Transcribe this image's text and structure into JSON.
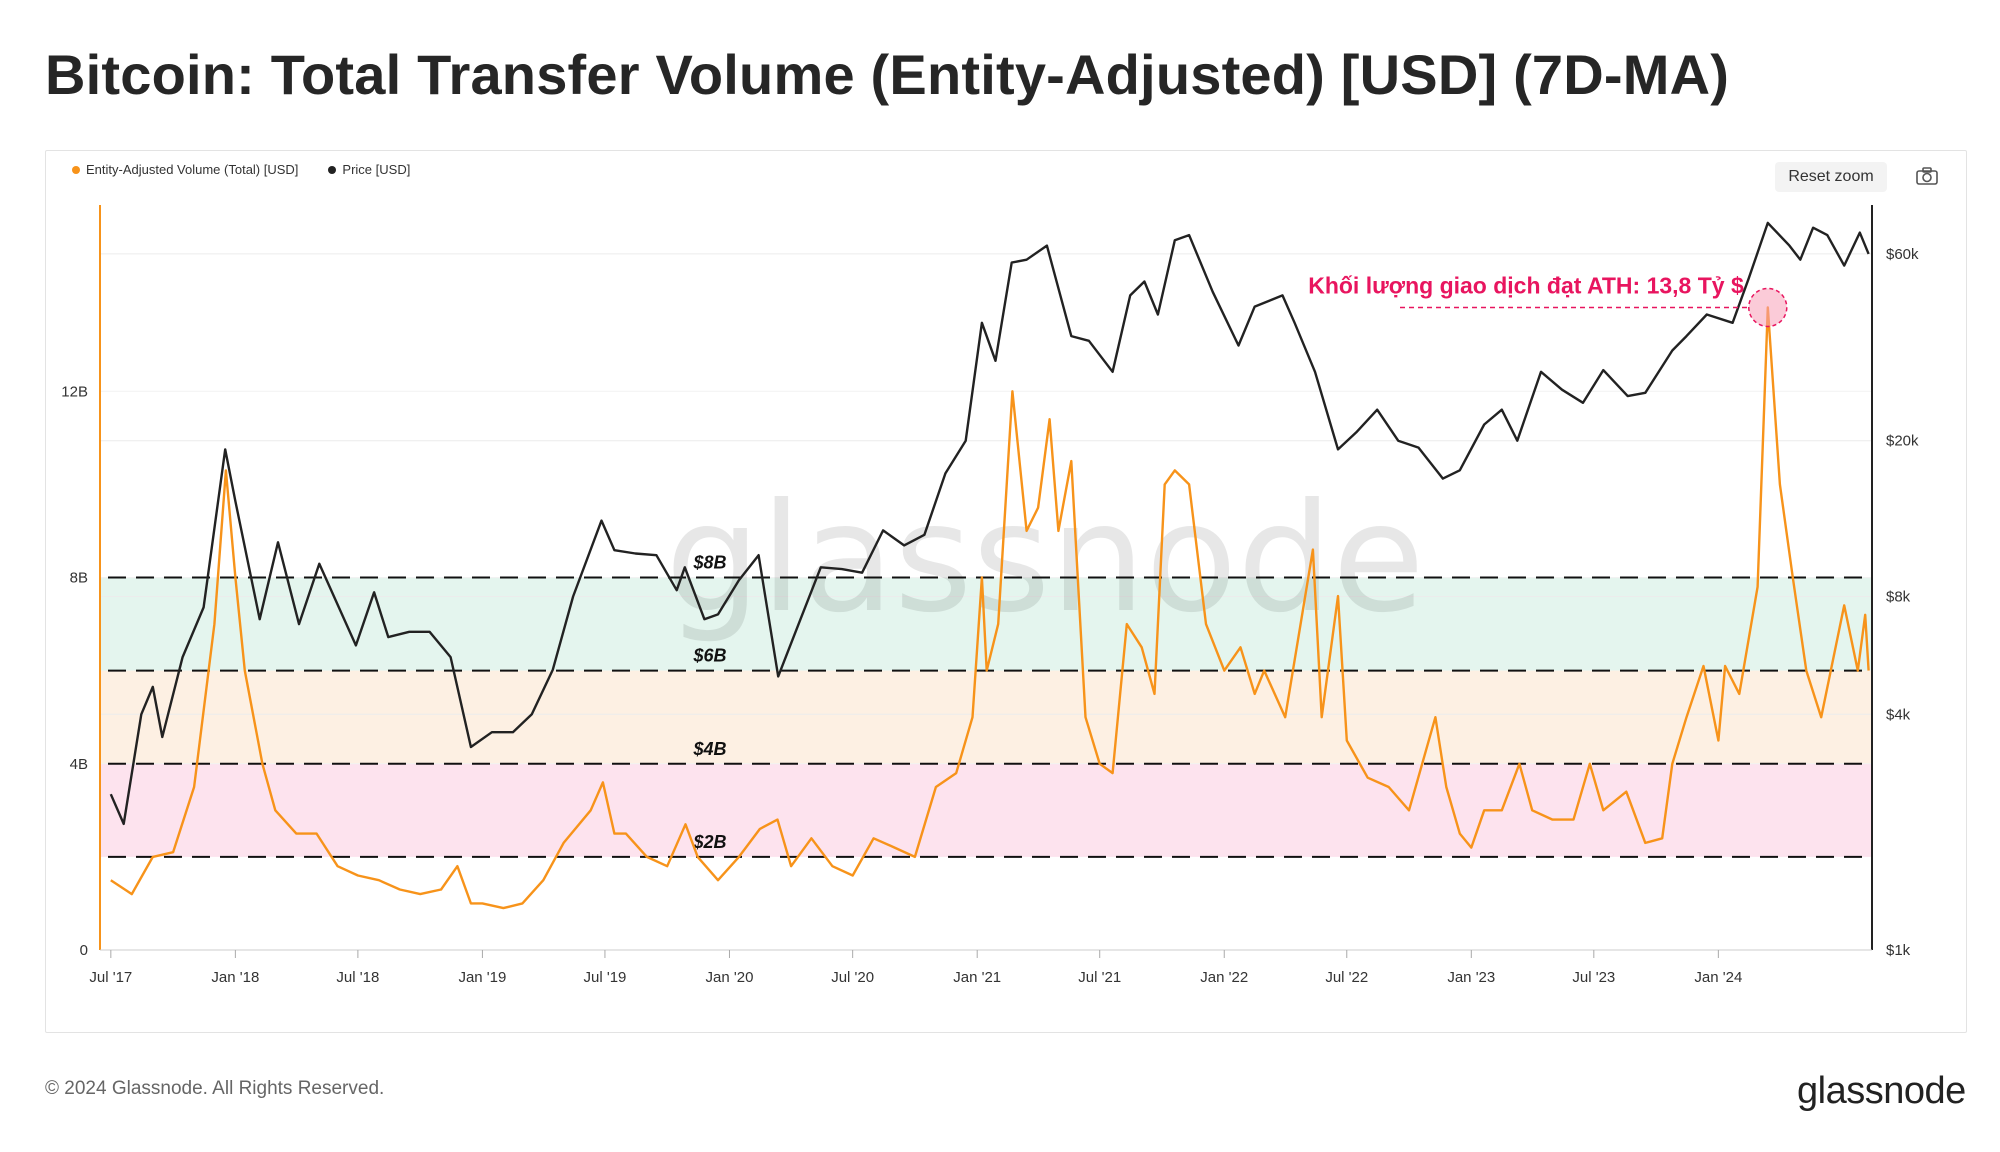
{
  "title": "Bitcoin: Total Transfer Volume (Entity-Adjusted) [USD] (7D-MA)",
  "legend": [
    {
      "label": "Entity-Adjusted Volume (Total) [USD]",
      "color": "#f7931a"
    },
    {
      "label": "Price [USD]",
      "color": "#222222"
    }
  ],
  "controls": {
    "reset_zoom": "Reset zoom",
    "camera_icon": "camera-icon"
  },
  "footer": {
    "copyright": "© 2024 Glassnode. All Rights Reserved.",
    "brand": "glassnode"
  },
  "watermark": "glassnode",
  "annotation": {
    "text": "Khối lượng giao dịch đạt ATH: 13,8 Tỷ $",
    "date": "2024-03-14",
    "value": 13.8
  },
  "colors": {
    "volume": "#f7931a",
    "price": "#222222",
    "annotation": "#e8155f",
    "band_green": "#e4f5ee",
    "band_orange": "#fdf0e3",
    "band_pink": "#fde3ee"
  },
  "chart_data": {
    "type": "line",
    "left_axis": {
      "ticks": [
        0,
        4,
        8,
        12
      ],
      "tick_labels": [
        "0",
        "4B",
        "8B",
        "12B"
      ],
      "range": [
        0,
        16
      ],
      "unit": "USD billions"
    },
    "right_axis": {
      "scale": "log",
      "ticks": [
        1000,
        4000,
        8000,
        20000,
        60000
      ],
      "tick_labels": [
        "$1k",
        "$4k",
        "$8k",
        "$20k",
        "$60k"
      ],
      "range": [
        1000,
        80000
      ]
    },
    "x_ticks": [
      "2017-07-01",
      "2018-01-01",
      "2018-07-01",
      "2019-01-01",
      "2019-07-01",
      "2020-01-01",
      "2020-07-01",
      "2021-01-01",
      "2021-07-01",
      "2022-01-01",
      "2022-07-01",
      "2023-01-01",
      "2023-07-01",
      "2024-01-01"
    ],
    "x_tick_labels": [
      "Jul '17",
      "Jan '18",
      "Jul '18",
      "Jan '19",
      "Jul '19",
      "Jan '20",
      "Jul '20",
      "Jan '21",
      "Jul '21",
      "Jan '22",
      "Jul '22",
      "Jan '23",
      "Jul '23",
      "Jan '24"
    ],
    "x_range": [
      "2017-06-15",
      "2024-08-15"
    ],
    "levels": [
      {
        "value": 8,
        "label": "$8B"
      },
      {
        "value": 6,
        "label": "$6B"
      },
      {
        "value": 4,
        "label": "$4B"
      },
      {
        "value": 2,
        "label": "$2B"
      }
    ],
    "bands": [
      {
        "from": 6,
        "to": 8,
        "color": "#e4f5ee"
      },
      {
        "from": 4,
        "to": 6,
        "color": "#fdf0e3"
      },
      {
        "from": 2,
        "to": 4,
        "color": "#fde3ee"
      }
    ],
    "series": [
      {
        "name": "Entity-Adjusted Volume (Total) [USD]",
        "axis": "left",
        "points": [
          [
            "2017-07-01",
            1.5
          ],
          [
            "2017-08-01",
            1.2
          ],
          [
            "2017-09-01",
            2.0
          ],
          [
            "2017-10-01",
            2.1
          ],
          [
            "2017-11-01",
            3.5
          ],
          [
            "2017-12-01",
            7.0
          ],
          [
            "2017-12-18",
            10.3
          ],
          [
            "2018-01-01",
            8.0
          ],
          [
            "2018-01-15",
            6.0
          ],
          [
            "2018-02-10",
            4.0
          ],
          [
            "2018-03-01",
            3.0
          ],
          [
            "2018-04-01",
            2.5
          ],
          [
            "2018-05-01",
            2.5
          ],
          [
            "2018-06-01",
            1.8
          ],
          [
            "2018-07-01",
            1.6
          ],
          [
            "2018-08-01",
            1.5
          ],
          [
            "2018-09-01",
            1.3
          ],
          [
            "2018-10-01",
            1.2
          ],
          [
            "2018-11-01",
            1.3
          ],
          [
            "2018-11-25",
            1.8
          ],
          [
            "2018-12-15",
            1.0
          ],
          [
            "2019-01-01",
            1.0
          ],
          [
            "2019-02-01",
            0.9
          ],
          [
            "2019-03-01",
            1.0
          ],
          [
            "2019-04-01",
            1.5
          ],
          [
            "2019-05-01",
            2.3
          ],
          [
            "2019-06-10",
            3.0
          ],
          [
            "2019-06-28",
            3.6
          ],
          [
            "2019-07-15",
            2.5
          ],
          [
            "2019-08-01",
            2.5
          ],
          [
            "2019-09-01",
            2.0
          ],
          [
            "2019-10-01",
            1.8
          ],
          [
            "2019-10-28",
            2.7
          ],
          [
            "2019-11-15",
            2.0
          ],
          [
            "2019-12-15",
            1.5
          ],
          [
            "2020-01-15",
            2.0
          ],
          [
            "2020-02-15",
            2.6
          ],
          [
            "2020-03-12",
            2.8
          ],
          [
            "2020-04-01",
            1.8
          ],
          [
            "2020-05-01",
            2.4
          ],
          [
            "2020-06-01",
            1.8
          ],
          [
            "2020-07-01",
            1.6
          ],
          [
            "2020-08-01",
            2.4
          ],
          [
            "2020-09-01",
            2.2
          ],
          [
            "2020-10-01",
            2.0
          ],
          [
            "2020-11-01",
            3.5
          ],
          [
            "2020-12-01",
            3.8
          ],
          [
            "2020-12-25",
            5.0
          ],
          [
            "2021-01-08",
            8.0
          ],
          [
            "2021-01-15",
            6.0
          ],
          [
            "2021-02-01",
            7.0
          ],
          [
            "2021-02-22",
            12.0
          ],
          [
            "2021-03-15",
            9.0
          ],
          [
            "2021-04-01",
            9.5
          ],
          [
            "2021-04-18",
            11.4
          ],
          [
            "2021-05-01",
            9.0
          ],
          [
            "2021-05-20",
            10.5
          ],
          [
            "2021-06-10",
            5.0
          ],
          [
            "2021-07-01",
            4.0
          ],
          [
            "2021-07-20",
            3.8
          ],
          [
            "2021-08-10",
            7.0
          ],
          [
            "2021-09-01",
            6.5
          ],
          [
            "2021-09-20",
            5.5
          ],
          [
            "2021-10-05",
            10.0
          ],
          [
            "2021-10-20",
            10.3
          ],
          [
            "2021-11-10",
            10.0
          ],
          [
            "2021-12-05",
            7.0
          ],
          [
            "2022-01-01",
            6.0
          ],
          [
            "2022-01-25",
            6.5
          ],
          [
            "2022-02-15",
            5.5
          ],
          [
            "2022-03-01",
            6.0
          ],
          [
            "2022-04-01",
            5.0
          ],
          [
            "2022-05-12",
            8.6
          ],
          [
            "2022-05-25",
            5.0
          ],
          [
            "2022-06-18",
            7.6
          ],
          [
            "2022-07-01",
            4.5
          ],
          [
            "2022-08-01",
            3.7
          ],
          [
            "2022-09-01",
            3.5
          ],
          [
            "2022-10-01",
            3.0
          ],
          [
            "2022-11-09",
            5.0
          ],
          [
            "2022-11-25",
            3.5
          ],
          [
            "2022-12-15",
            2.5
          ],
          [
            "2023-01-01",
            2.2
          ],
          [
            "2023-01-20",
            3.0
          ],
          [
            "2023-02-15",
            3.0
          ],
          [
            "2023-03-13",
            4.0
          ],
          [
            "2023-04-01",
            3.0
          ],
          [
            "2023-05-01",
            2.8
          ],
          [
            "2023-06-01",
            2.8
          ],
          [
            "2023-06-25",
            4.0
          ],
          [
            "2023-07-15",
            3.0
          ],
          [
            "2023-08-18",
            3.4
          ],
          [
            "2023-09-15",
            2.3
          ],
          [
            "2023-10-10",
            2.4
          ],
          [
            "2023-10-25",
            4.0
          ],
          [
            "2023-11-15",
            5.0
          ],
          [
            "2023-12-10",
            6.1
          ],
          [
            "2024-01-01",
            4.5
          ],
          [
            "2024-01-11",
            6.1
          ],
          [
            "2024-02-01",
            5.5
          ],
          [
            "2024-02-28",
            7.8
          ],
          [
            "2024-03-14",
            13.8
          ],
          [
            "2024-04-01",
            10.0
          ],
          [
            "2024-04-20",
            8.0
          ],
          [
            "2024-05-10",
            6.0
          ],
          [
            "2024-06-01",
            5.0
          ],
          [
            "2024-07-05",
            7.4
          ],
          [
            "2024-07-25",
            6.0
          ],
          [
            "2024-08-05",
            7.2
          ],
          [
            "2024-08-10",
            6.0
          ]
        ]
      },
      {
        "name": "Price [USD]",
        "axis": "right",
        "points": [
          [
            "2017-07-01",
            2500
          ],
          [
            "2017-07-20",
            2100
          ],
          [
            "2017-08-15",
            4000
          ],
          [
            "2017-09-01",
            4700
          ],
          [
            "2017-09-15",
            3500
          ],
          [
            "2017-10-15",
            5600
          ],
          [
            "2017-11-15",
            7500
          ],
          [
            "2017-12-17",
            19000
          ],
          [
            "2018-01-01",
            14000
          ],
          [
            "2018-02-06",
            7000
          ],
          [
            "2018-03-05",
            11000
          ],
          [
            "2018-04-05",
            6800
          ],
          [
            "2018-05-05",
            9700
          ],
          [
            "2018-06-28",
            6000
          ],
          [
            "2018-07-25",
            8200
          ],
          [
            "2018-08-15",
            6300
          ],
          [
            "2018-09-15",
            6500
          ],
          [
            "2018-10-15",
            6500
          ],
          [
            "2018-11-15",
            5600
          ],
          [
            "2018-12-15",
            3300
          ],
          [
            "2019-01-15",
            3600
          ],
          [
            "2019-02-15",
            3600
          ],
          [
            "2019-03-15",
            4000
          ],
          [
            "2019-04-15",
            5200
          ],
          [
            "2019-05-15",
            8000
          ],
          [
            "2019-06-26",
            12500
          ],
          [
            "2019-07-15",
            10500
          ],
          [
            "2019-08-15",
            10300
          ],
          [
            "2019-09-15",
            10200
          ],
          [
            "2019-10-15",
            8300
          ],
          [
            "2019-10-27",
            9500
          ],
          [
            "2019-11-25",
            7000
          ],
          [
            "2019-12-15",
            7200
          ],
          [
            "2020-01-15",
            8800
          ],
          [
            "2020-02-13",
            10200
          ],
          [
            "2020-03-13",
            5000
          ],
          [
            "2020-04-15",
            7000
          ],
          [
            "2020-05-15",
            9500
          ],
          [
            "2020-06-15",
            9400
          ],
          [
            "2020-07-15",
            9200
          ],
          [
            "2020-08-15",
            11800
          ],
          [
            "2020-09-15",
            10800
          ],
          [
            "2020-10-15",
            11500
          ],
          [
            "2020-11-15",
            16500
          ],
          [
            "2020-12-15",
            20000
          ],
          [
            "2021-01-08",
            40000
          ],
          [
            "2021-01-28",
            32000
          ],
          [
            "2021-02-21",
            57000
          ],
          [
            "2021-03-15",
            58000
          ],
          [
            "2021-04-14",
            63000
          ],
          [
            "2021-05-20",
            37000
          ],
          [
            "2021-06-15",
            36000
          ],
          [
            "2021-07-20",
            30000
          ],
          [
            "2021-08-15",
            47000
          ],
          [
            "2021-09-05",
            51000
          ],
          [
            "2021-09-25",
            42000
          ],
          [
            "2021-10-20",
            65000
          ],
          [
            "2021-11-10",
            67000
          ],
          [
            "2021-12-15",
            48000
          ],
          [
            "2022-01-22",
            35000
          ],
          [
            "2022-02-15",
            44000
          ],
          [
            "2022-03-28",
            47000
          ],
          [
            "2022-04-15",
            40000
          ],
          [
            "2022-05-15",
            30000
          ],
          [
            "2022-06-18",
            19000
          ],
          [
            "2022-07-15",
            21000
          ],
          [
            "2022-08-15",
            24000
          ],
          [
            "2022-09-15",
            20000
          ],
          [
            "2022-10-15",
            19200
          ],
          [
            "2022-11-20",
            16000
          ],
          [
            "2022-12-15",
            16800
          ],
          [
            "2023-01-20",
            22000
          ],
          [
            "2023-02-15",
            24000
          ],
          [
            "2023-03-10",
            20000
          ],
          [
            "2023-04-14",
            30000
          ],
          [
            "2023-05-15",
            27000
          ],
          [
            "2023-06-15",
            25000
          ],
          [
            "2023-07-15",
            30300
          ],
          [
            "2023-08-20",
            26000
          ],
          [
            "2023-09-15",
            26500
          ],
          [
            "2023-10-25",
            34000
          ],
          [
            "2023-11-15",
            37000
          ],
          [
            "2023-12-15",
            42000
          ],
          [
            "2024-01-22",
            40000
          ],
          [
            "2024-02-15",
            52000
          ],
          [
            "2024-03-14",
            72000
          ],
          [
            "2024-04-15",
            63000
          ],
          [
            "2024-05-01",
            58000
          ],
          [
            "2024-05-20",
            70000
          ],
          [
            "2024-06-10",
            67000
          ],
          [
            "2024-07-05",
            56000
          ],
          [
            "2024-07-28",
            68000
          ],
          [
            "2024-08-10",
            60000
          ]
        ]
      }
    ],
    "grid": true,
    "legend_position": "top-left"
  }
}
